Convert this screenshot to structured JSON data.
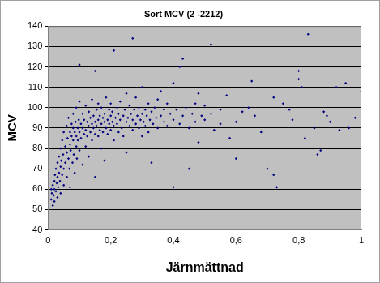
{
  "chart_data": {
    "type": "scatter",
    "title": "Sort MCV (2 -2212)",
    "x_label": "Järnmättnad",
    "y_label": "MCV",
    "color": "#000080",
    "marker": "diamond",
    "grid": "y",
    "xlim": [
      0,
      1
    ],
    "xticks": [
      0,
      {
        "value": 0.2,
        "label": "0,2"
      },
      {
        "value": 0.4,
        "label": "0,4"
      },
      {
        "value": 0.6,
        "label": "0,6"
      },
      {
        "value": 0.8,
        "label": "0,8"
      },
      1
    ],
    "ylim": [
      40,
      140
    ],
    "yticks": [
      40,
      50,
      60,
      70,
      80,
      90,
      100,
      110,
      120,
      130,
      140
    ],
    "x": [
      0.01,
      0.01,
      0.012,
      0.015,
      0.015,
      0.018,
      0.02,
      0.02,
      0.02,
      0.022,
      0.025,
      0.025,
      0.028,
      0.03,
      0.03,
      0.03,
      0.032,
      0.035,
      0.035,
      0.038,
      0.04,
      0.04,
      0.04,
      0.042,
      0.045,
      0.045,
      0.048,
      0.05,
      0.05,
      0.05,
      0.055,
      0.055,
      0.06,
      0.06,
      0.06,
      0.062,
      0.065,
      0.065,
      0.068,
      0.07,
      0.07,
      0.07,
      0.072,
      0.075,
      0.075,
      0.078,
      0.08,
      0.08,
      0.08,
      0.082,
      0.085,
      0.085,
      0.088,
      0.09,
      0.09,
      0.09,
      0.092,
      0.095,
      0.095,
      0.098,
      0.1,
      0.1,
      0.1,
      0.1,
      0.105,
      0.105,
      0.11,
      0.11,
      0.11,
      0.115,
      0.115,
      0.12,
      0.12,
      0.12,
      0.125,
      0.125,
      0.13,
      0.13,
      0.13,
      0.135,
      0.135,
      0.14,
      0.14,
      0.14,
      0.145,
      0.145,
      0.15,
      0.15,
      0.15,
      0.15,
      0.155,
      0.155,
      0.16,
      0.16,
      0.16,
      0.165,
      0.165,
      0.17,
      0.17,
      0.17,
      0.175,
      0.175,
      0.18,
      0.18,
      0.18,
      0.185,
      0.185,
      0.19,
      0.19,
      0.195,
      0.195,
      0.2,
      0.2,
      0.2,
      0.205,
      0.205,
      0.21,
      0.21,
      0.21,
      0.215,
      0.22,
      0.22,
      0.225,
      0.225,
      0.23,
      0.23,
      0.235,
      0.24,
      0.24,
      0.245,
      0.25,
      0.25,
      0.25,
      0.255,
      0.26,
      0.26,
      0.265,
      0.27,
      0.27,
      0.27,
      0.275,
      0.28,
      0.28,
      0.285,
      0.29,
      0.29,
      0.295,
      0.3,
      0.3,
      0.3,
      0.305,
      0.31,
      0.31,
      0.315,
      0.32,
      0.32,
      0.325,
      0.33,
      0.33,
      0.335,
      0.34,
      0.345,
      0.35,
      0.35,
      0.36,
      0.36,
      0.37,
      0.37,
      0.38,
      0.38,
      0.39,
      0.4,
      0.4,
      0.4,
      0.41,
      0.42,
      0.42,
      0.43,
      0.43,
      0.44,
      0.45,
      0.45,
      0.46,
      0.47,
      0.47,
      0.48,
      0.48,
      0.49,
      0.5,
      0.5,
      0.52,
      0.52,
      0.53,
      0.55,
      0.55,
      0.57,
      0.58,
      0.6,
      0.6,
      0.62,
      0.64,
      0.65,
      0.66,
      0.68,
      0.7,
      0.72,
      0.72,
      0.73,
      0.75,
      0.77,
      0.78,
      0.8,
      0.8,
      0.81,
      0.82,
      0.83,
      0.85,
      0.86,
      0.87,
      0.88,
      0.89,
      0.9,
      0.92,
      0.93,
      0.95,
      0.96,
      0.98,
      1.0
    ],
    "values": [
      60,
      55,
      58,
      52,
      62,
      57,
      54,
      64,
      60,
      67,
      59,
      70,
      63,
      56,
      66,
      73,
      61,
      68,
      76,
      64,
      71,
      80,
      58,
      74,
      67,
      84,
      77,
      62,
      70,
      88,
      73,
      81,
      66,
      78,
      91,
      85,
      75,
      95,
      70,
      82,
      88,
      61,
      79,
      92,
      86,
      73,
      84,
      90,
      97,
      77,
      88,
      68,
      93,
      81,
      86,
      100,
      75,
      90,
      84,
      94,
      88,
      79,
      121,
      103,
      92,
      85,
      90,
      72,
      97,
      87,
      94,
      89,
      81,
      101,
      93,
      86,
      91,
      76,
      98,
      88,
      95,
      92,
      84,
      104,
      90,
      96,
      87,
      93,
      118,
      66,
      99,
      91,
      94,
      86,
      102,
      89,
      96,
      92,
      80,
      100,
      95,
      88,
      93,
      97,
      74,
      90,
      105,
      94,
      87,
      99,
      92,
      96,
      89,
      102,
      93,
      98,
      91,
      128,
      84,
      95,
      100,
      92,
      97,
      88,
      94,
      103,
      90,
      96,
      86,
      99,
      93,
      78,
      107,
      95,
      91,
      101,
      97,
      134,
      89,
      94,
      99,
      92,
      105,
      96,
      90,
      100,
      94,
      97,
      86,
      110,
      93,
      99,
      91,
      96,
      102,
      88,
      94,
      98,
      73,
      92,
      100,
      95,
      90,
      104,
      96,
      108,
      93,
      99,
      91,
      102,
      97,
      94,
      61,
      112,
      99,
      92,
      120,
      96,
      124,
      100,
      90,
      70,
      97,
      102,
      93,
      107,
      83,
      96,
      94,
      101,
      131,
      97,
      89,
      92,
      99,
      106,
      85,
      93,
      75,
      98,
      100,
      113,
      96,
      88,
      70,
      67,
      105,
      61,
      102,
      99,
      94,
      118,
      114,
      110,
      85,
      136,
      90,
      77,
      79,
      98,
      96,
      93,
      110,
      89,
      112,
      90,
      95,
      108
    ]
  }
}
